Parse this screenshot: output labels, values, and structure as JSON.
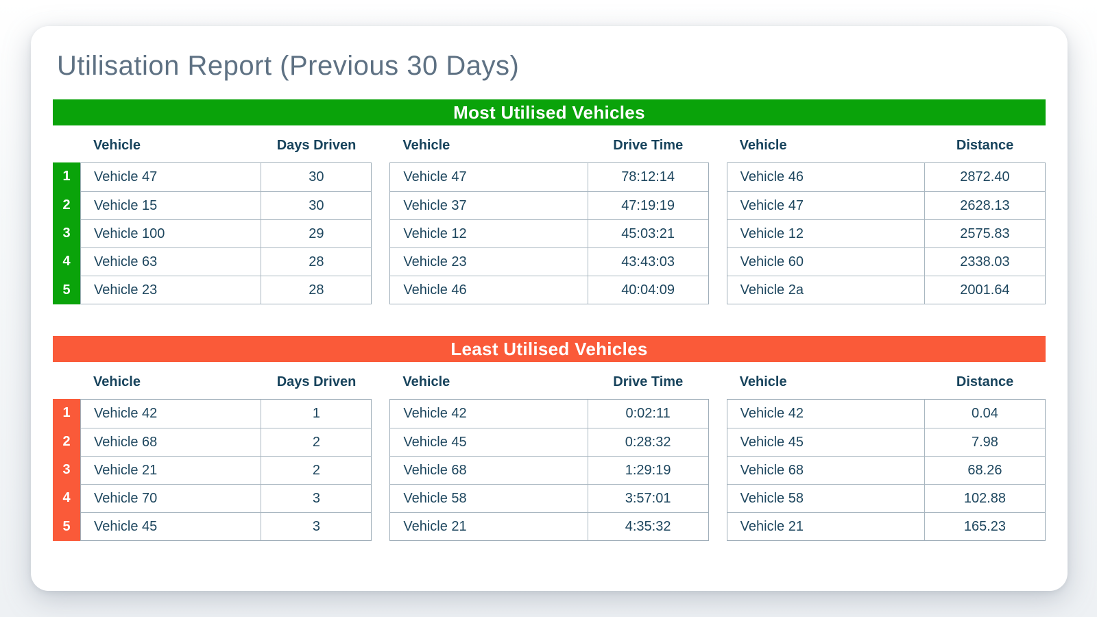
{
  "title": "Utilisation Report (Previous 30 Days)",
  "colors": {
    "green": "#0aa30a",
    "orange": "#fa5a39",
    "text": "#1d465e",
    "title": "#5e7183",
    "border": "#9faeb9"
  },
  "sections": [
    {
      "title": "Most Utilised Vehicles",
      "ranks": [
        "1",
        "2",
        "3",
        "4",
        "5"
      ],
      "tables": [
        {
          "col1": "Vehicle",
          "col2": "Days Driven",
          "rows": [
            [
              "Vehicle 47",
              "30"
            ],
            [
              "Vehicle 15",
              "30"
            ],
            [
              "Vehicle 100",
              "29"
            ],
            [
              "Vehicle 63",
              "28"
            ],
            [
              "Vehicle 23",
              "28"
            ]
          ]
        },
        {
          "col1": "Vehicle",
          "col2": "Drive Time",
          "rows": [
            [
              "Vehicle 47",
              "78:12:14"
            ],
            [
              "Vehicle 37",
              "47:19:19"
            ],
            [
              "Vehicle 12",
              "45:03:21"
            ],
            [
              "Vehicle 23",
              "43:43:03"
            ],
            [
              "Vehicle 46",
              "40:04:09"
            ]
          ]
        },
        {
          "col1": "Vehicle",
          "col2": "Distance",
          "rows": [
            [
              "Vehicle 46",
              "2872.40"
            ],
            [
              "Vehicle 47",
              "2628.13"
            ],
            [
              "Vehicle 12",
              "2575.83"
            ],
            [
              "Vehicle 60",
              "2338.03"
            ],
            [
              "Vehicle 2a",
              "2001.64"
            ]
          ]
        }
      ]
    },
    {
      "title": "Least Utilised Vehicles",
      "ranks": [
        "1",
        "2",
        "3",
        "4",
        "5"
      ],
      "tables": [
        {
          "col1": "Vehicle",
          "col2": "Days Driven",
          "rows": [
            [
              "Vehicle 42",
              "1"
            ],
            [
              "Vehicle 68",
              "2"
            ],
            [
              "Vehicle 21",
              "2"
            ],
            [
              "Vehicle 70",
              "3"
            ],
            [
              "Vehicle 45",
              "3"
            ]
          ]
        },
        {
          "col1": "Vehicle",
          "col2": "Drive Time",
          "rows": [
            [
              "Vehicle 42",
              "0:02:11"
            ],
            [
              "Vehicle 45",
              "0:28:32"
            ],
            [
              "Vehicle 68",
              "1:29:19"
            ],
            [
              "Vehicle 58",
              "3:57:01"
            ],
            [
              "Vehicle 21",
              "4:35:32"
            ]
          ]
        },
        {
          "col1": "Vehicle",
          "col2": "Distance",
          "rows": [
            [
              "Vehicle 42",
              "0.04"
            ],
            [
              "Vehicle 45",
              "7.98"
            ],
            [
              "Vehicle 68",
              "68.26"
            ],
            [
              "Vehicle 58",
              "102.88"
            ],
            [
              "Vehicle 21",
              "165.23"
            ]
          ]
        }
      ]
    }
  ]
}
